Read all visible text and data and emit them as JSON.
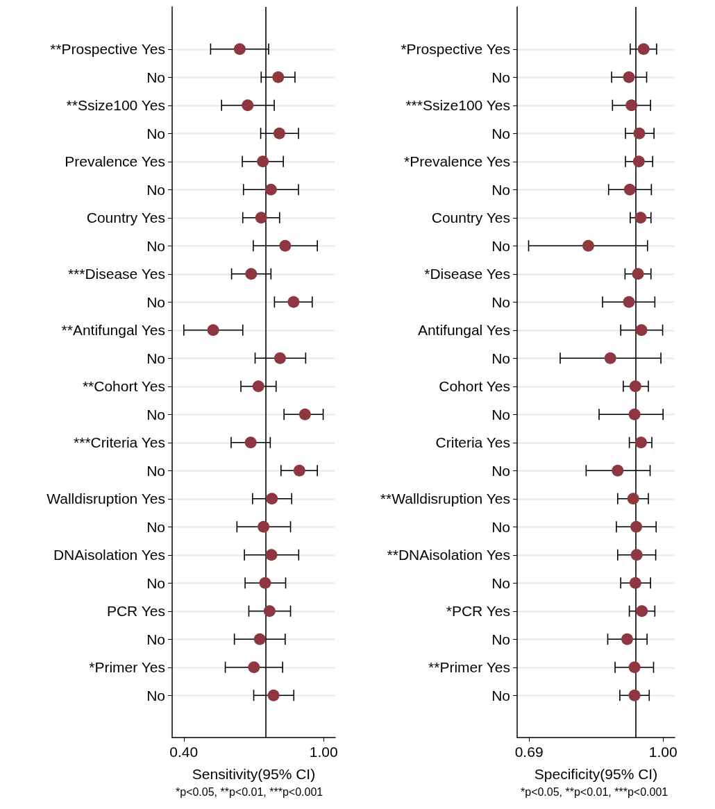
{
  "chart_data": [
    {
      "type": "scatter",
      "orientation": "horizontal",
      "xlabel": "Sensitivity(95% CI)",
      "annotations": [
        "*p<0.05, **p<0.01, ***p<0.001"
      ],
      "categories": [
        "**Prospective Yes",
        "No",
        "**Ssize100 Yes",
        "No",
        "Prevalence Yes",
        "No",
        "Country Yes",
        "No",
        "***Disease Yes",
        "No",
        "**Antifungal Yes",
        "No",
        "**Cohort Yes",
        "No",
        "***Criteria Yes",
        "No",
        "Walldisruption Yes",
        "No",
        "DNAisolation Yes",
        "No",
        "PCR Yes",
        "No",
        "*Primer Yes",
        "No"
      ],
      "values": [
        0.64,
        0.805,
        0.674,
        0.81,
        0.739,
        0.774,
        0.732,
        0.835,
        0.689,
        0.871,
        0.526,
        0.813,
        0.72,
        0.92,
        0.687,
        0.896,
        0.778,
        0.742,
        0.776,
        0.749,
        0.768,
        0.726,
        0.701,
        0.785
      ],
      "errors": [
        [
          0.515,
          0.764
        ],
        [
          0.732,
          0.877
        ],
        [
          0.562,
          0.788
        ],
        [
          0.73,
          0.892
        ],
        [
          0.651,
          0.827
        ],
        [
          0.656,
          0.892
        ],
        [
          0.653,
          0.811
        ],
        [
          0.698,
          0.973
        ],
        [
          0.605,
          0.774
        ],
        [
          0.789,
          0.951
        ],
        [
          0.4,
          0.653
        ],
        [
          0.706,
          0.923
        ],
        [
          0.645,
          0.796
        ],
        [
          0.83,
          0.998
        ],
        [
          0.603,
          0.771
        ],
        [
          0.817,
          0.973
        ],
        [
          0.695,
          0.863
        ],
        [
          0.628,
          0.858
        ],
        [
          0.66,
          0.893
        ],
        [
          0.663,
          0.837
        ],
        [
          0.679,
          0.858
        ],
        [
          0.617,
          0.835
        ],
        [
          0.578,
          0.824
        ],
        [
          0.7,
          0.872
        ]
      ],
      "color": "#8f3741",
      "xlim": [
        0.35,
        1.05
      ],
      "xticks": [
        {
          "value": 0.4,
          "label": "0.40"
        },
        {
          "value": 1.0,
          "label": "1.00"
        }
      ],
      "ref_lines": [
        {
          "axis": "x",
          "value": 0.75,
          "color": "#000000"
        }
      ],
      "grid": "y",
      "marker": "circle"
    },
    {
      "type": "scatter",
      "orientation": "horizontal",
      "xlabel": "Specificity(95% CI)",
      "annotations": [
        "*p<0.05, **p<0.01, ***p<0.001"
      ],
      "categories": [
        "*Prospective Yes",
        "No",
        "***Ssize100 Yes",
        "No",
        "*Prevalence Yes",
        "No",
        "Country Yes",
        "No",
        "*Disease Yes",
        "No",
        "Antifungal Yes",
        "No",
        "Cohort Yes",
        "No",
        "Criteria Yes",
        "No",
        "**Walldisruption Yes",
        "No",
        "**DNAisolation Yes",
        "No",
        "*PCR Yes",
        "No",
        "**Primer Yes",
        "No"
      ],
      "values": [
        0.955,
        0.921,
        0.927,
        0.945,
        0.944,
        0.923,
        0.948,
        0.827,
        0.942,
        0.921,
        0.95,
        0.878,
        0.936,
        0.934,
        0.949,
        0.895,
        0.931,
        0.938,
        0.939,
        0.936,
        0.951,
        0.917,
        0.934,
        0.934
      ],
      "errors": [
        [
          0.924,
          0.985
        ],
        [
          0.881,
          0.962
        ],
        [
          0.883,
          0.971
        ],
        [
          0.913,
          0.979
        ],
        [
          0.913,
          0.976
        ],
        [
          0.874,
          0.973
        ],
        [
          0.924,
          0.972
        ],
        [
          0.689,
          0.964
        ],
        [
          0.912,
          0.972
        ],
        [
          0.86,
          0.981
        ],
        [
          0.902,
          0.999
        ],
        [
          0.762,
          0.995
        ],
        [
          0.908,
          0.966
        ],
        [
          0.852,
          1.0
        ],
        [
          0.922,
          0.974
        ],
        [
          0.822,
          0.97
        ],
        [
          0.895,
          0.966
        ],
        [
          0.892,
          0.984
        ],
        [
          0.895,
          0.983
        ],
        [
          0.902,
          0.971
        ],
        [
          0.922,
          0.981
        ],
        [
          0.872,
          0.963
        ],
        [
          0.889,
          0.978
        ],
        [
          0.9,
          0.968
        ]
      ],
      "color": "#8f3741",
      "xlim": [
        0.6625,
        1.027
      ],
      "xticks": [
        {
          "value": 0.69,
          "label": "0.69"
        },
        {
          "value": 1.0,
          "label": "1.00"
        }
      ],
      "ref_lines": [
        {
          "axis": "x",
          "value": 0.936,
          "color": "#000000"
        }
      ],
      "grid": "y",
      "marker": "circle"
    }
  ]
}
